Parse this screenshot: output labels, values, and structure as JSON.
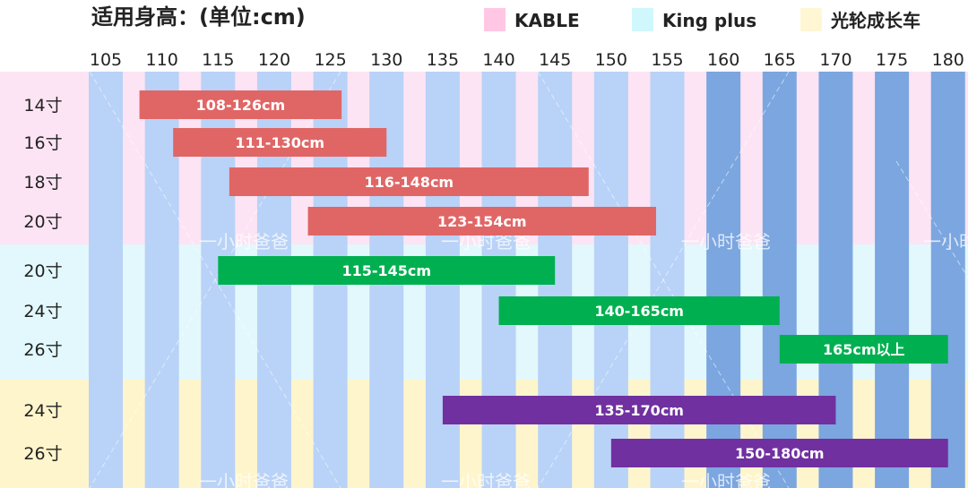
{
  "chart_data": {
    "type": "bar",
    "orientation": "horizontal-range",
    "title": "适用身高：(单位:cm)",
    "x_ticks": [
      105,
      110,
      115,
      120,
      125,
      130,
      135,
      140,
      145,
      150,
      155,
      160,
      165,
      170,
      175,
      180
    ],
    "xlim": [
      105,
      180
    ],
    "legend_position": "top-right",
    "series": [
      {
        "name": "KABLE",
        "color": "#ff99cc",
        "band_color": "#fce4f4",
        "bar_color": "#e06666",
        "items": [
          {
            "label": "14寸",
            "start": 108,
            "end": 126,
            "text": "108-126cm"
          },
          {
            "label": "16寸",
            "start": 111,
            "end": 130,
            "text": "111-130cm"
          },
          {
            "label": "18寸",
            "start": 116,
            "end": 148,
            "text": "116-148cm"
          },
          {
            "label": "20寸",
            "start": 123,
            "end": 154,
            "text": "123-154cm"
          }
        ]
      },
      {
        "name": "King plus",
        "color": "#a9f0fa",
        "band_color": "#e2f8fc",
        "bar_color": "#00b050",
        "items": [
          {
            "label": "20寸",
            "start": 115,
            "end": 145,
            "text": "115-145cm"
          },
          {
            "label": "24寸",
            "start": 140,
            "end": 165,
            "text": "140-165cm"
          },
          {
            "label": "26寸",
            "start": 165,
            "end": 180,
            "text": "165cm以上"
          }
        ]
      },
      {
        "name": "光轮成长车",
        "color": "#fff0b0",
        "band_color": "#fff5cc",
        "bar_color": "#7030a0",
        "items": [
          {
            "label": "24寸",
            "start": 135,
            "end": 170,
            "text": "135-170cm"
          },
          {
            "label": "26寸",
            "start": 150,
            "end": 180,
            "text": "150-180cm"
          }
        ]
      }
    ],
    "watermark": "一小时爸爸"
  }
}
